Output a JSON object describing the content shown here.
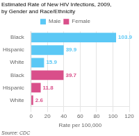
{
  "chart_data": {
    "type": "bar",
    "orientation": "horizontal",
    "title": "Estimated Rate of New HIV Infections, 2009,",
    "subtitle": "by Gender and Race/Ethnicity",
    "annotations": [
      "Source: CDC"
    ],
    "categories": [
      "Black",
      "Hispanic",
      "White",
      "Black",
      "Hispanic",
      "White"
    ],
    "series": [
      {
        "name": "Male",
        "color": "#5bc8f5",
        "values": [
          103.9,
          39.9,
          15.9,
          null,
          null,
          null
        ]
      },
      {
        "name": "Female",
        "color": "#d94f8a",
        "values": [
          null,
          null,
          null,
          39.7,
          11.8,
          2.6
        ]
      }
    ],
    "xlabel": "Rate per 100,000",
    "xlim": [
      0,
      120
    ],
    "xticks": [
      0,
      20,
      40,
      60,
      80,
      100,
      120
    ],
    "grid": true,
    "legend": "top",
    "data_labels": true
  }
}
